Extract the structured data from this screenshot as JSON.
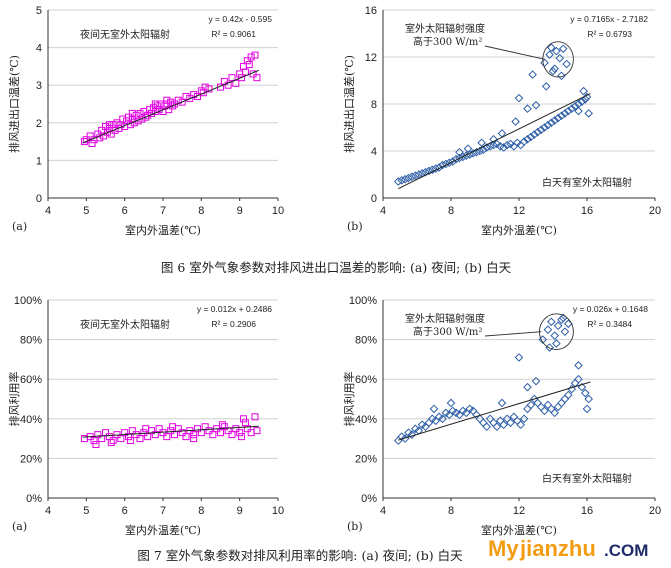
{
  "colors": {
    "magenta": "#e000e0",
    "blue": "#2e5fa8",
    "grid": "#d0d0d0",
    "watermark_orange": "#f39c12",
    "watermark_dark": "#1f2b6b"
  },
  "captions": {
    "fig6": "图 6  室外气象参数对排风进出口温差的影响: (a) 夜间; (b) 白天",
    "fig7": "图 7  室外气象参数对排风利用率的影响: (a) 夜间; (b) 白天"
  },
  "watermark": {
    "part1": "My",
    "part2": "jianzhu",
    "part3": ".COM"
  },
  "chart_data": [
    {
      "id": "fig6a",
      "panel_label": "(a)",
      "type": "scatter",
      "marker": "square",
      "color": "#e000e0",
      "xlabel": "室内外温差(℃)",
      "ylabel": "排风进出口温差(℃)",
      "xlim": [
        4,
        10
      ],
      "ylim": [
        0,
        5
      ],
      "xticks": [
        "4",
        "5",
        "6",
        "7",
        "8",
        "9",
        "10"
      ],
      "yticks": [
        "0",
        "1",
        "2",
        "3",
        "4",
        "5"
      ],
      "annotation": "夜间无室外太阳辐射",
      "trendline": {
        "slope": 0.42,
        "intercept": -0.595,
        "x_range": [
          4.9,
          9.5
        ]
      },
      "equation": "y = 0.42x - 0.595",
      "r2": "R² = 0.9061",
      "points": [
        [
          4.95,
          1.5
        ],
        [
          5.1,
          1.65
        ],
        [
          5.15,
          1.45
        ],
        [
          5.2,
          1.55
        ],
        [
          5.3,
          1.7
        ],
        [
          5.35,
          1.6
        ],
        [
          5.4,
          1.8
        ],
        [
          5.45,
          1.65
        ],
        [
          5.5,
          1.9
        ],
        [
          5.55,
          1.75
        ],
        [
          5.6,
          1.85
        ],
        [
          5.65,
          1.7
        ],
        [
          5.7,
          1.95
        ],
        [
          5.75,
          1.8
        ],
        [
          5.8,
          2.0
        ],
        [
          5.85,
          1.85
        ],
        [
          5.9,
          1.95
        ],
        [
          5.95,
          2.1
        ],
        [
          6.0,
          1.9
        ],
        [
          6.05,
          2.05
        ],
        [
          6.1,
          2.15
        ],
        [
          6.15,
          1.95
        ],
        [
          6.2,
          2.1
        ],
        [
          6.25,
          2.0
        ],
        [
          6.3,
          2.2
        ],
        [
          6.35,
          2.05
        ],
        [
          6.4,
          2.25
        ],
        [
          6.45,
          2.1
        ],
        [
          6.5,
          2.3
        ],
        [
          6.55,
          2.15
        ],
        [
          6.6,
          2.2
        ],
        [
          6.65,
          2.35
        ],
        [
          6.7,
          2.25
        ],
        [
          6.75,
          2.4
        ],
        [
          6.8,
          2.3
        ],
        [
          6.85,
          2.45
        ],
        [
          6.9,
          2.35
        ],
        [
          6.95,
          2.5
        ],
        [
          7.0,
          2.3
        ],
        [
          7.05,
          2.45
        ],
        [
          7.1,
          2.5
        ],
        [
          7.15,
          2.35
        ],
        [
          7.2,
          2.55
        ],
        [
          7.3,
          2.5
        ],
        [
          7.4,
          2.6
        ],
        [
          7.5,
          2.55
        ],
        [
          7.6,
          2.7
        ],
        [
          7.7,
          2.65
        ],
        [
          7.8,
          2.75
        ],
        [
          7.9,
          2.7
        ],
        [
          8.0,
          2.85
        ],
        [
          8.05,
          2.8
        ],
        [
          8.1,
          2.95
        ],
        [
          8.5,
          2.95
        ],
        [
          8.6,
          3.1
        ],
        [
          8.7,
          3.0
        ],
        [
          8.8,
          3.2
        ],
        [
          8.9,
          3.05
        ],
        [
          9.0,
          3.3
        ],
        [
          9.05,
          3.2
        ],
        [
          9.1,
          3.5
        ],
        [
          9.15,
          3.35
        ],
        [
          9.2,
          3.65
        ],
        [
          9.25,
          3.55
        ],
        [
          9.3,
          3.75
        ],
        [
          9.35,
          3.3
        ],
        [
          9.4,
          3.8
        ],
        [
          9.45,
          3.2
        ],
        [
          5.0,
          1.55
        ],
        [
          5.6,
          1.95
        ],
        [
          6.2,
          2.25
        ],
        [
          6.8,
          2.5
        ],
        [
          7.1,
          2.6
        ],
        [
          7.25,
          2.45
        ],
        [
          8.2,
          2.9
        ]
      ]
    },
    {
      "id": "fig6b",
      "panel_label": "(b)",
      "type": "scatter",
      "marker": "diamond",
      "color": "#2e5fa8",
      "xlabel": "室内外温差(℃)",
      "ylabel": "排风进出口温差(℃)",
      "xlim": [
        4,
        20
      ],
      "ylim": [
        0,
        16
      ],
      "xticks": [
        "4",
        "8",
        "12",
        "16",
        "20"
      ],
      "yticks": [
        "0",
        "4",
        "8",
        "12",
        "16"
      ],
      "annotation": "白天有室外太阳辐射",
      "note_lines": [
        "室外太阳辐射强度",
        "高于300 W/m²"
      ],
      "highlight_region": {
        "cx": 14.3,
        "cy": 11.8,
        "rx": 0.9,
        "ry": 1.5
      },
      "trendline": {
        "slope": 0.7165,
        "intercept": -2.7182,
        "x_range": [
          4.9,
          16.2
        ]
      },
      "equation": "y = 0.7165x - 2.7182",
      "r2": "R² = 0.6793",
      "points": [
        [
          4.9,
          1.4
        ],
        [
          5.1,
          1.5
        ],
        [
          5.3,
          1.6
        ],
        [
          5.5,
          1.7
        ],
        [
          5.7,
          1.8
        ],
        [
          5.9,
          1.9
        ],
        [
          6.1,
          2.0
        ],
        [
          6.3,
          2.1
        ],
        [
          6.5,
          2.2
        ],
        [
          6.7,
          2.3
        ],
        [
          6.9,
          2.4
        ],
        [
          7.1,
          2.5
        ],
        [
          7.3,
          2.6
        ],
        [
          7.5,
          2.8
        ],
        [
          7.7,
          2.9
        ],
        [
          7.9,
          3.0
        ],
        [
          8.1,
          3.1
        ],
        [
          8.3,
          3.3
        ],
        [
          8.5,
          3.4
        ],
        [
          8.7,
          3.5
        ],
        [
          8.9,
          3.6
        ],
        [
          9.1,
          3.7
        ],
        [
          9.3,
          3.8
        ],
        [
          9.5,
          3.9
        ],
        [
          9.7,
          4.0
        ],
        [
          9.9,
          4.1
        ],
        [
          10.1,
          4.3
        ],
        [
          10.3,
          4.4
        ],
        [
          10.5,
          4.5
        ],
        [
          10.7,
          4.6
        ],
        [
          10.9,
          4.4
        ],
        [
          11.1,
          4.3
        ],
        [
          11.3,
          4.5
        ],
        [
          11.5,
          4.6
        ],
        [
          11.7,
          4.4
        ],
        [
          11.9,
          4.7
        ],
        [
          12.1,
          4.5
        ],
        [
          12.3,
          4.8
        ],
        [
          12.5,
          5.0
        ],
        [
          12.7,
          5.2
        ],
        [
          12.9,
          5.4
        ],
        [
          13.1,
          5.6
        ],
        [
          13.3,
          5.8
        ],
        [
          13.5,
          6.0
        ],
        [
          13.7,
          6.2
        ],
        [
          13.9,
          6.4
        ],
        [
          14.1,
          6.6
        ],
        [
          14.3,
          6.8
        ],
        [
          14.5,
          7.0
        ],
        [
          14.7,
          7.2
        ],
        [
          14.9,
          7.4
        ],
        [
          15.1,
          7.6
        ],
        [
          15.3,
          7.8
        ],
        [
          15.5,
          8.0
        ],
        [
          15.7,
          8.2
        ],
        [
          15.9,
          8.4
        ],
        [
          16.1,
          7.2
        ],
        [
          16.0,
          8.6
        ],
        [
          15.5,
          7.4
        ],
        [
          15.8,
          9.1
        ],
        [
          12.0,
          8.5
        ],
        [
          12.5,
          7.6
        ],
        [
          13.0,
          7.9
        ],
        [
          11.8,
          6.5
        ],
        [
          11.0,
          5.5
        ],
        [
          10.5,
          5.0
        ],
        [
          9.8,
          4.7
        ],
        [
          9.0,
          4.2
        ],
        [
          8.5,
          3.9
        ],
        [
          12.8,
          10.5
        ],
        [
          13.5,
          11.5
        ],
        [
          13.8,
          12.2
        ],
        [
          14.0,
          10.8
        ],
        [
          14.2,
          12.5
        ],
        [
          14.4,
          11.9
        ],
        [
          14.6,
          12.7
        ],
        [
          14.8,
          11.4
        ],
        [
          14.1,
          11.0
        ],
        [
          13.9,
          12.8
        ],
        [
          13.6,
          9.5
        ],
        [
          14.5,
          10.4
        ]
      ]
    },
    {
      "id": "fig7a",
      "panel_label": "(a)",
      "type": "scatter",
      "marker": "square",
      "color": "#e000e0",
      "xlabel": "室内外温差(℃)",
      "ylabel": "排风利用率",
      "xlim": [
        4,
        10
      ],
      "ylim": [
        0,
        1
      ],
      "xticks": [
        "4",
        "5",
        "6",
        "7",
        "8",
        "9",
        "10"
      ],
      "yticks": [
        "0%",
        "20%",
        "40%",
        "60%",
        "80%",
        "100%"
      ],
      "annotation": "夜间无室外太阳辐射",
      "trendline": {
        "slope": 0.012,
        "intercept": 0.2486,
        "x_range": [
          4.9,
          9.5
        ]
      },
      "equation": "y = 0.012x + 0.2486",
      "r2": "R² = 0.2906",
      "points": [
        [
          4.95,
          0.3
        ],
        [
          5.1,
          0.31
        ],
        [
          5.2,
          0.29
        ],
        [
          5.3,
          0.32
        ],
        [
          5.4,
          0.3
        ],
        [
          5.5,
          0.33
        ],
        [
          5.6,
          0.31
        ],
        [
          5.7,
          0.29
        ],
        [
          5.8,
          0.32
        ],
        [
          5.9,
          0.3
        ],
        [
          6.0,
          0.33
        ],
        [
          6.1,
          0.31
        ],
        [
          6.2,
          0.34
        ],
        [
          6.3,
          0.32
        ],
        [
          6.4,
          0.3
        ],
        [
          6.5,
          0.33
        ],
        [
          6.6,
          0.31
        ],
        [
          6.7,
          0.34
        ],
        [
          6.8,
          0.32
        ],
        [
          6.9,
          0.35
        ],
        [
          7.0,
          0.33
        ],
        [
          7.1,
          0.31
        ],
        [
          7.2,
          0.34
        ],
        [
          7.3,
          0.32
        ],
        [
          7.4,
          0.35
        ],
        [
          7.5,
          0.33
        ],
        [
          7.6,
          0.31
        ],
        [
          7.7,
          0.34
        ],
        [
          7.8,
          0.32
        ],
        [
          7.9,
          0.35
        ],
        [
          8.0,
          0.33
        ],
        [
          8.1,
          0.36
        ],
        [
          8.2,
          0.34
        ],
        [
          8.3,
          0.32
        ],
        [
          8.4,
          0.35
        ],
        [
          8.5,
          0.33
        ],
        [
          8.6,
          0.36
        ],
        [
          8.7,
          0.34
        ],
        [
          8.8,
          0.32
        ],
        [
          8.9,
          0.35
        ],
        [
          9.0,
          0.33
        ],
        [
          9.1,
          0.4
        ],
        [
          9.15,
          0.38
        ],
        [
          9.2,
          0.35
        ],
        [
          9.3,
          0.33
        ],
        [
          9.4,
          0.41
        ],
        [
          9.45,
          0.34
        ],
        [
          5.25,
          0.27
        ],
        [
          5.65,
          0.28
        ],
        [
          6.15,
          0.29
        ],
        [
          6.55,
          0.35
        ],
        [
          7.25,
          0.36
        ],
        [
          7.8,
          0.3
        ],
        [
          8.55,
          0.37
        ],
        [
          9.05,
          0.31
        ]
      ]
    },
    {
      "id": "fig7b",
      "panel_label": "(b)",
      "type": "scatter",
      "marker": "diamond",
      "color": "#2e5fa8",
      "xlabel": "室内外温差(℃)",
      "ylabel": "排风利用率",
      "xlim": [
        4,
        20
      ],
      "ylim": [
        0,
        1
      ],
      "xticks": [
        "4",
        "8",
        "12",
        "16",
        "20"
      ],
      "yticks": [
        "0%",
        "20%",
        "40%",
        "60%",
        "80%",
        "100%"
      ],
      "annotation": "白天有室外太阳辐射",
      "note_lines": [
        "室外太阳辐射强度",
        "高于300 W/m²"
      ],
      "highlight_region": {
        "cx": 14.2,
        "cy": 0.84,
        "rx": 1.0,
        "ry": 0.09
      },
      "trendline": {
        "slope": 0.026,
        "intercept": 0.1648,
        "x_range": [
          4.9,
          16.2
        ]
      },
      "equation": "y = 0.026x + 0.1648",
      "r2": "R² = 0.3484",
      "points": [
        [
          4.9,
          0.29
        ],
        [
          5.1,
          0.31
        ],
        [
          5.3,
          0.3
        ],
        [
          5.5,
          0.33
        ],
        [
          5.7,
          0.32
        ],
        [
          5.9,
          0.35
        ],
        [
          6.1,
          0.34
        ],
        [
          6.3,
          0.37
        ],
        [
          6.5,
          0.36
        ],
        [
          6.7,
          0.38
        ],
        [
          6.9,
          0.4
        ],
        [
          7.1,
          0.39
        ],
        [
          7.3,
          0.41
        ],
        [
          7.5,
          0.4
        ],
        [
          7.7,
          0.43
        ],
        [
          7.9,
          0.42
        ],
        [
          8.1,
          0.44
        ],
        [
          8.3,
          0.43
        ],
        [
          8.5,
          0.42
        ],
        [
          8.7,
          0.44
        ],
        [
          8.9,
          0.43
        ],
        [
          9.1,
          0.45
        ],
        [
          9.3,
          0.44
        ],
        [
          9.5,
          0.42
        ],
        [
          9.7,
          0.4
        ],
        [
          9.9,
          0.38
        ],
        [
          10.1,
          0.36
        ],
        [
          10.3,
          0.4
        ],
        [
          10.5,
          0.38
        ],
        [
          10.7,
          0.36
        ],
        [
          10.9,
          0.39
        ],
        [
          11.1,
          0.37
        ],
        [
          11.3,
          0.4
        ],
        [
          11.5,
          0.38
        ],
        [
          11.7,
          0.41
        ],
        [
          11.9,
          0.39
        ],
        [
          12.1,
          0.37
        ],
        [
          12.3,
          0.4
        ],
        [
          12.5,
          0.45
        ],
        [
          12.7,
          0.47
        ],
        [
          12.9,
          0.5
        ],
        [
          13.1,
          0.48
        ],
        [
          13.3,
          0.46
        ],
        [
          13.5,
          0.44
        ],
        [
          13.7,
          0.47
        ],
        [
          13.9,
          0.45
        ],
        [
          14.1,
          0.43
        ],
        [
          14.3,
          0.46
        ],
        [
          14.5,
          0.48
        ],
        [
          14.7,
          0.5
        ],
        [
          14.9,
          0.52
        ],
        [
          15.1,
          0.55
        ],
        [
          15.3,
          0.58
        ],
        [
          15.5,
          0.6
        ],
        [
          15.7,
          0.56
        ],
        [
          15.9,
          0.53
        ],
        [
          16.1,
          0.5
        ],
        [
          16.0,
          0.45
        ],
        [
          15.5,
          0.67
        ],
        [
          12.0,
          0.71
        ],
        [
          12.5,
          0.56
        ],
        [
          13.0,
          0.59
        ],
        [
          11.0,
          0.48
        ],
        [
          8.0,
          0.48
        ],
        [
          7.0,
          0.45
        ],
        [
          13.4,
          0.8
        ],
        [
          13.7,
          0.85
        ],
        [
          13.9,
          0.89
        ],
        [
          14.1,
          0.82
        ],
        [
          14.3,
          0.87
        ],
        [
          14.5,
          0.9
        ],
        [
          14.7,
          0.84
        ],
        [
          14.9,
          0.88
        ],
        [
          14.2,
          0.78
        ],
        [
          13.8,
          0.76
        ],
        [
          14.6,
          0.91
        ]
      ]
    }
  ]
}
